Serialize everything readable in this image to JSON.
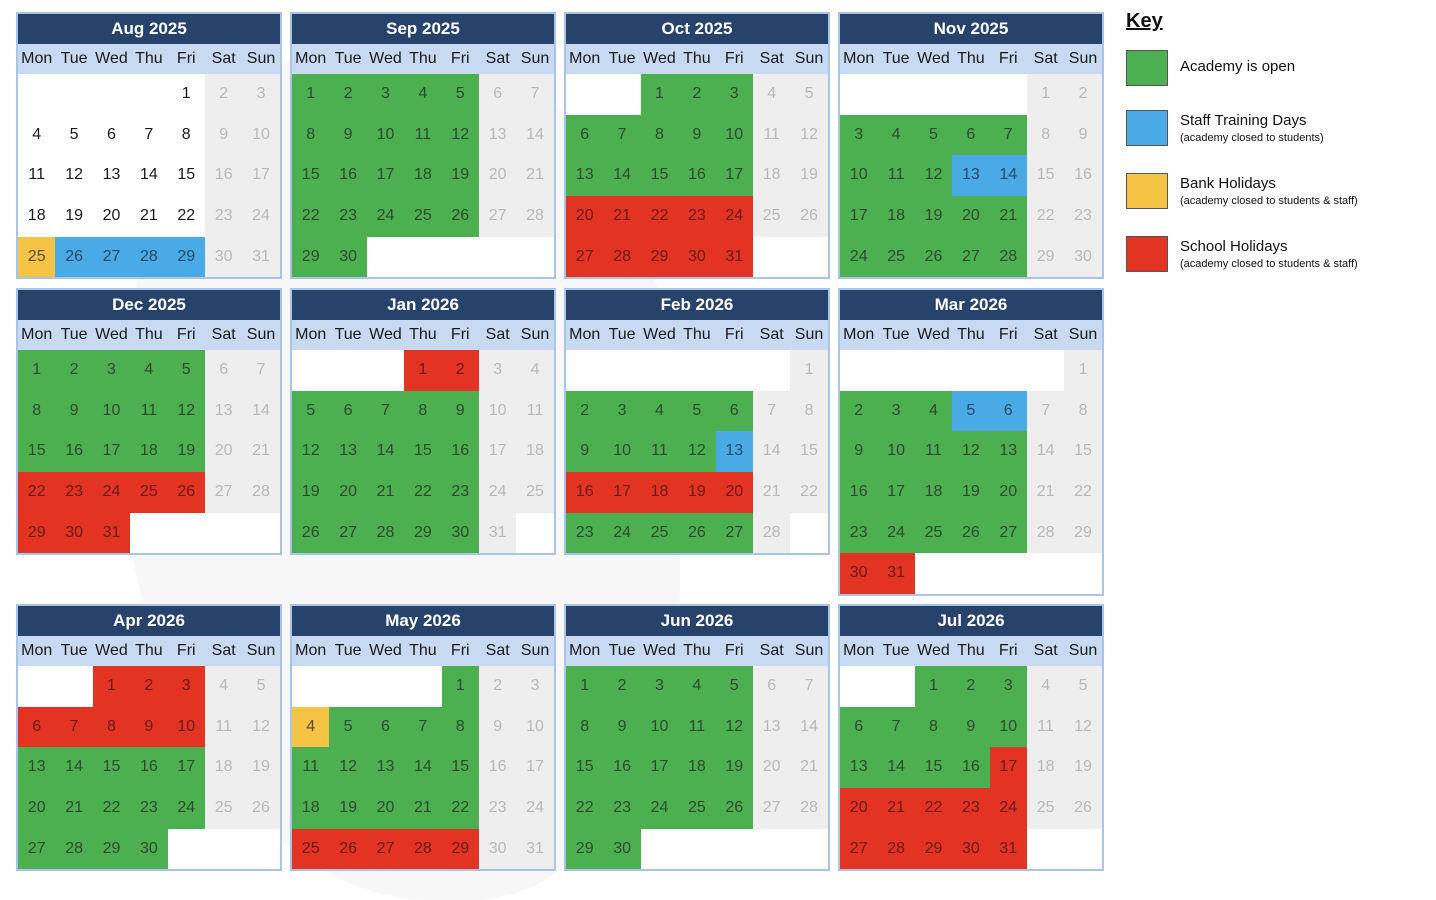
{
  "dow": [
    "Mon",
    "Tue",
    "Wed",
    "Thu",
    "Fri",
    "Sat",
    "Sun"
  ],
  "colors": {
    "open": "#4caf50",
    "training": "#4aaae6",
    "bank": "#f6c445",
    "school": "#e23323",
    "header": "#27436b",
    "dow_bg": "#c8daf2"
  },
  "key": {
    "title": "Key",
    "items": [
      {
        "type": "open",
        "label": "Academy is open",
        "sub": ""
      },
      {
        "type": "training",
        "label": "Staff Training Days",
        "sub": "(academy closed to students)"
      },
      {
        "type": "bank",
        "label": "Bank Holidays",
        "sub": "(academy closed to students & staff)"
      },
      {
        "type": "school",
        "label": "School Holidays",
        "sub": "(academy closed to students & staff)"
      }
    ]
  },
  "months": [
    {
      "title": "Aug 2025",
      "offset": 4,
      "days": 31,
      "open": [],
      "training": [
        26,
        27,
        28,
        29
      ],
      "bank": [
        25
      ],
      "school": []
    },
    {
      "title": "Sep 2025",
      "offset": 0,
      "days": 30,
      "open": [
        1,
        2,
        3,
        4,
        5,
        8,
        9,
        10,
        11,
        12,
        15,
        16,
        17,
        18,
        19,
        22,
        23,
        24,
        25,
        26,
        29,
        30
      ],
      "training": [],
      "bank": [],
      "school": []
    },
    {
      "title": "Oct 2025",
      "offset": 2,
      "days": 31,
      "open": [
        1,
        2,
        3,
        6,
        7,
        8,
        9,
        10,
        13,
        14,
        15,
        16,
        17
      ],
      "training": [],
      "bank": [],
      "school": [
        20,
        21,
        22,
        23,
        24,
        27,
        28,
        29,
        30,
        31
      ]
    },
    {
      "title": "Nov 2025",
      "offset": 5,
      "days": 30,
      "open": [
        3,
        4,
        5,
        6,
        7,
        10,
        11,
        12,
        17,
        18,
        19,
        20,
        21,
        24,
        25,
        26,
        27,
        28
      ],
      "training": [
        13,
        14
      ],
      "bank": [],
      "school": []
    },
    {
      "title": "Dec 2025",
      "offset": 0,
      "days": 31,
      "open": [
        1,
        2,
        3,
        4,
        5,
        8,
        9,
        10,
        11,
        12,
        15,
        16,
        17,
        18,
        19
      ],
      "training": [],
      "bank": [],
      "school": [
        22,
        23,
        24,
        25,
        26,
        29,
        30,
        31
      ]
    },
    {
      "title": "Jan 2026",
      "offset": 3,
      "days": 31,
      "open": [
        5,
        6,
        7,
        8,
        9,
        12,
        13,
        14,
        15,
        16,
        19,
        20,
        21,
        22,
        23,
        26,
        27,
        28,
        29,
        30
      ],
      "training": [],
      "bank": [],
      "school": [
        1,
        2
      ]
    },
    {
      "title": "Feb 2026",
      "offset": 6,
      "days": 28,
      "open": [
        2,
        3,
        4,
        5,
        6,
        9,
        10,
        11,
        12,
        23,
        24,
        25,
        26,
        27
      ],
      "training": [
        13
      ],
      "bank": [],
      "school": [
        16,
        17,
        18,
        19,
        20
      ]
    },
    {
      "title": "Mar 2026",
      "offset": 6,
      "days": 31,
      "open": [
        2,
        3,
        4,
        9,
        10,
        11,
        12,
        13,
        16,
        17,
        18,
        19,
        20,
        23,
        24,
        25,
        26,
        27
      ],
      "training": [
        5,
        6
      ],
      "bank": [],
      "school": [
        30,
        31
      ]
    },
    {
      "title": "Apr 2026",
      "offset": 2,
      "days": 30,
      "open": [
        13,
        14,
        15,
        16,
        17,
        20,
        21,
        22,
        23,
        24,
        27,
        28,
        29,
        30
      ],
      "training": [],
      "bank": [],
      "school": [
        1,
        2,
        3,
        6,
        7,
        8,
        9,
        10
      ]
    },
    {
      "title": "May 2026",
      "offset": 4,
      "days": 31,
      "open": [
        1,
        5,
        6,
        7,
        8,
        11,
        12,
        13,
        14,
        15,
        18,
        19,
        20,
        21,
        22
      ],
      "training": [],
      "bank": [
        4
      ],
      "school": [
        25,
        26,
        27,
        28,
        29
      ]
    },
    {
      "title": "Jun 2026",
      "offset": 0,
      "days": 30,
      "open": [
        1,
        2,
        3,
        4,
        5,
        8,
        9,
        10,
        11,
        12,
        15,
        16,
        17,
        18,
        19,
        22,
        23,
        24,
        25,
        26,
        29,
        30
      ],
      "training": [],
      "bank": [],
      "school": []
    },
    {
      "title": "Jul 2026",
      "offset": 2,
      "days": 31,
      "open": [
        1,
        2,
        3,
        6,
        7,
        8,
        9,
        10,
        13,
        14,
        15,
        16
      ],
      "training": [],
      "bank": [],
      "school": [
        17,
        20,
        21,
        22,
        23,
        24,
        27,
        28,
        29,
        30,
        31
      ]
    }
  ]
}
